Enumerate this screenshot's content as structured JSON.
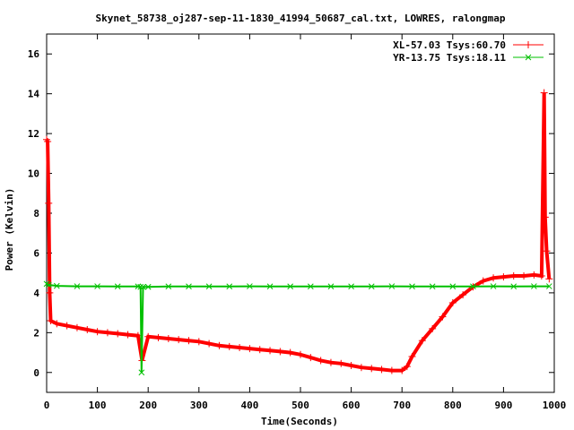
{
  "chart_data": {
    "type": "line",
    "title": "Skynet_58738_oj287-sep-11-1830_41994_50687_cal.txt, LOWRES, ralongmap",
    "xlabel": "Time(Seconds)",
    "ylabel": "Power (Kelvin)",
    "xlim": [
      0,
      1000
    ],
    "ylim": [
      -1,
      17
    ],
    "x_ticks": [
      0,
      100,
      200,
      300,
      400,
      500,
      600,
      700,
      800,
      900,
      1000
    ],
    "y_ticks": [
      0,
      2,
      4,
      6,
      8,
      10,
      12,
      14,
      16
    ],
    "grid": false,
    "legend_position": "top-right",
    "series": [
      {
        "name": "XL-57.03 Tsys:60.70",
        "color": "#ff0000",
        "marker": "plus",
        "x": [
          0,
          2,
          4,
          6,
          8,
          20,
          40,
          60,
          80,
          100,
          120,
          140,
          160,
          180,
          188,
          200,
          220,
          240,
          260,
          280,
          300,
          320,
          340,
          360,
          380,
          400,
          420,
          440,
          460,
          480,
          500,
          520,
          540,
          560,
          580,
          600,
          620,
          640,
          660,
          680,
          700,
          710,
          720,
          740,
          760,
          780,
          800,
          820,
          840,
          860,
          880,
          900,
          920,
          940,
          960,
          975,
          980,
          982,
          985,
          990
        ],
        "y": [
          11.7,
          11.6,
          8.5,
          4.0,
          2.6,
          2.45,
          2.35,
          2.25,
          2.15,
          2.05,
          2.0,
          1.95,
          1.9,
          1.85,
          0.6,
          1.8,
          1.75,
          1.7,
          1.65,
          1.6,
          1.55,
          1.45,
          1.35,
          1.3,
          1.25,
          1.2,
          1.15,
          1.1,
          1.05,
          1.0,
          0.9,
          0.75,
          0.6,
          0.5,
          0.45,
          0.35,
          0.25,
          0.2,
          0.15,
          0.1,
          0.1,
          0.3,
          0.8,
          1.6,
          2.2,
          2.8,
          3.5,
          3.9,
          4.3,
          4.6,
          4.75,
          4.8,
          4.85,
          4.85,
          4.9,
          4.85,
          14.05,
          7.8,
          6.1,
          4.7
        ]
      },
      {
        "name": "YR-13.75 Tsys:18.11",
        "color": "#00c000",
        "marker": "cross",
        "x": [
          0,
          4,
          20,
          60,
          100,
          140,
          180,
          185,
          187,
          190,
          200,
          240,
          280,
          320,
          360,
          400,
          440,
          480,
          520,
          560,
          600,
          640,
          680,
          720,
          760,
          800,
          840,
          880,
          920,
          960,
          990
        ],
        "y": [
          4.45,
          4.4,
          4.35,
          4.33,
          4.33,
          4.32,
          4.32,
          4.3,
          0.0,
          4.3,
          4.3,
          4.32,
          4.32,
          4.32,
          4.32,
          4.33,
          4.32,
          4.32,
          4.32,
          4.32,
          4.32,
          4.32,
          4.33,
          4.32,
          4.32,
          4.32,
          4.32,
          4.33,
          4.32,
          4.33,
          4.33
        ]
      }
    ]
  }
}
